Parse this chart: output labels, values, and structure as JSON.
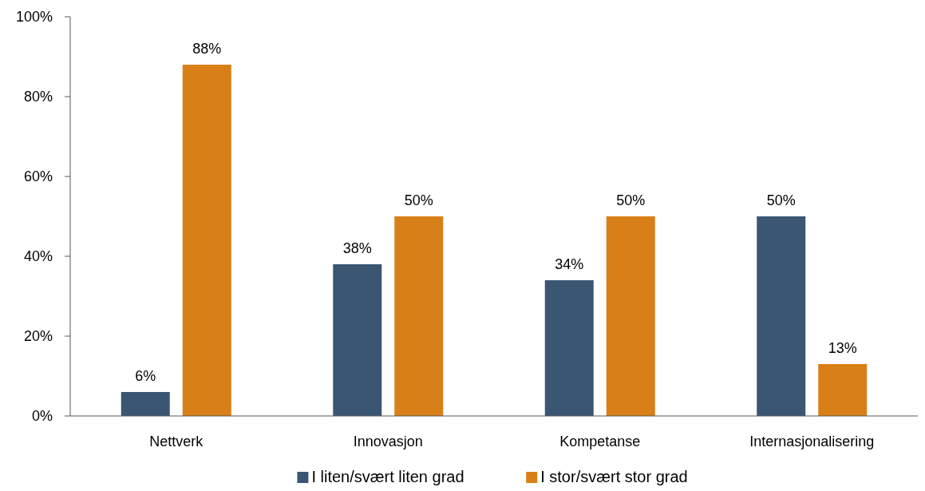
{
  "chart_data": {
    "type": "bar",
    "categories": [
      "Nettverk",
      "Innovasjon",
      "Kompetanse",
      "Internasjonalisering"
    ],
    "series": [
      {
        "name": "I liten/svært liten grad",
        "color": "#3a5673",
        "values": [
          6,
          38,
          34,
          50
        ],
        "value_labels": [
          "6%",
          "38%",
          "34%",
          "50%"
        ]
      },
      {
        "name": "I stor/svært stor grad",
        "color": "#d97f17",
        "values": [
          88,
          50,
          50,
          13
        ],
        "value_labels": [
          "88%",
          "50%",
          "50%",
          "13%"
        ]
      }
    ],
    "ylim": [
      0,
      100
    ],
    "yticks": [
      {
        "value": 0,
        "label": "0%"
      },
      {
        "value": 20,
        "label": "20%"
      },
      {
        "value": 40,
        "label": "40%"
      },
      {
        "value": 60,
        "label": "60%"
      },
      {
        "value": 80,
        "label": "80%"
      },
      {
        "value": 100,
        "label": "100%"
      }
    ],
    "grid": false,
    "legend": "bottom"
  }
}
